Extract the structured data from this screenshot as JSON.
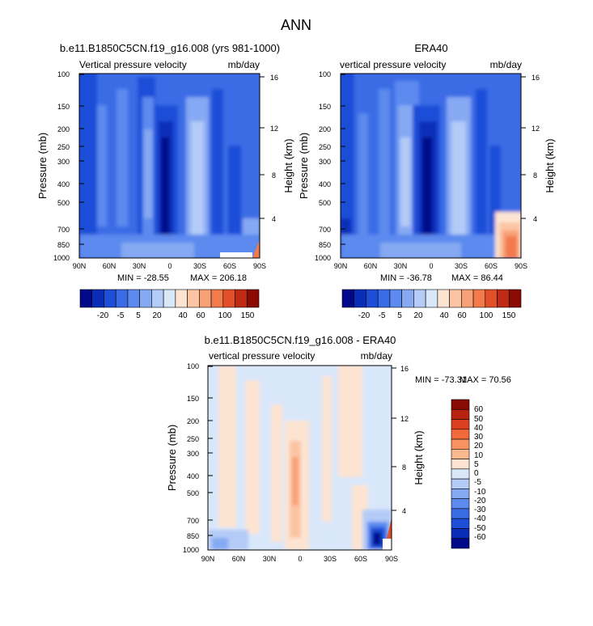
{
  "title": "ANN",
  "chart_data": [
    {
      "type": "heatmap",
      "title": "b.e11.B1850C5CN.f19_g16.008 (yrs 981-1000)",
      "subtitle_left": "Vertical pressure velocity",
      "subtitle_right": "mb/day",
      "xlabel": "",
      "ylabel": "Pressure (mb)",
      "ylabel_right": "Height (km)",
      "x_ticks": [
        "90N",
        "60N",
        "30N",
        "0",
        "30S",
        "60S",
        "90S"
      ],
      "y_ticks": [
        "100",
        "150",
        "200",
        "250",
        "300",
        "400",
        "500",
        "700",
        "850",
        "1000"
      ],
      "y_right_ticks": [
        "4",
        "8",
        "12",
        "16"
      ],
      "stats": {
        "min_label": "MIN = -28.55",
        "max_label": "MAX = 206.18",
        "min": -28.55,
        "max": 206.18
      },
      "colorbar_labels": [
        "-20",
        "-5",
        "5",
        "20",
        "40",
        "60",
        "100",
        "150"
      ]
    },
    {
      "type": "heatmap",
      "title": "ERA40",
      "subtitle_left": "vertical pressure velocity",
      "subtitle_right": "mb/day",
      "xlabel": "",
      "ylabel": "Pressure (mb)",
      "ylabel_right": "Height (km)",
      "x_ticks": [
        "90N",
        "60N",
        "30N",
        "0",
        "30S",
        "60S",
        "90S"
      ],
      "y_ticks": [
        "100",
        "150",
        "200",
        "250",
        "300",
        "400",
        "500",
        "700",
        "850",
        "1000"
      ],
      "y_right_ticks": [
        "4",
        "8",
        "12",
        "16"
      ],
      "stats": {
        "min_label": "MIN = -36.78",
        "max_label": "MAX =  86.44",
        "min": -36.78,
        "max": 86.44
      },
      "colorbar_labels": [
        "-20",
        "-5",
        "5",
        "20",
        "40",
        "60",
        "100",
        "150"
      ]
    },
    {
      "type": "heatmap",
      "title": "b.e11.B1850C5CN.f19_g16.008 - ERA40",
      "subtitle_left": "vertical pressure velocity",
      "subtitle_right": "mb/day",
      "xlabel": "",
      "ylabel": "Pressure (mb)",
      "ylabel_right": "Height (km)",
      "x_ticks": [
        "90N",
        "60N",
        "30N",
        "0",
        "30S",
        "60S",
        "90S"
      ],
      "y_ticks": [
        "100",
        "150",
        "200",
        "250",
        "300",
        "400",
        "500",
        "700",
        "850",
        "1000"
      ],
      "y_right_ticks": [
        "4",
        "8",
        "12",
        "16"
      ],
      "stats": {
        "min_label": "MIN = -73.31",
        "max_label": "MAX =  70.56",
        "min": -73.31,
        "max": 70.56
      },
      "colorbar_labels": [
        "60",
        "50",
        "40",
        "30",
        "20",
        "10",
        "5",
        "0",
        "-5",
        "-10",
        "-20",
        "-30",
        "-40",
        "-50",
        "-60"
      ]
    }
  ],
  "colors": {
    "abs_scale": [
      "#00098a",
      "#0a2db8",
      "#1c4ed8",
      "#3a6ce6",
      "#5c8aee",
      "#86a9f3",
      "#b4cbf7",
      "#d9e7fb",
      "#fde4d2",
      "#fbc5a4",
      "#f7a176",
      "#f27a4b",
      "#e2502a",
      "#bf2a14",
      "#8a0a04"
    ],
    "diff_scale": [
      "#8a0a04",
      "#b8230f",
      "#dc411f",
      "#f26a3c",
      "#f8935f",
      "#fbb98f",
      "#fde4d2",
      "#d9e7fb",
      "#b4cbf7",
      "#86a9f3",
      "#5c8aee",
      "#3a6ce6",
      "#1c4ed8",
      "#0a2db8",
      "#00098a"
    ]
  }
}
